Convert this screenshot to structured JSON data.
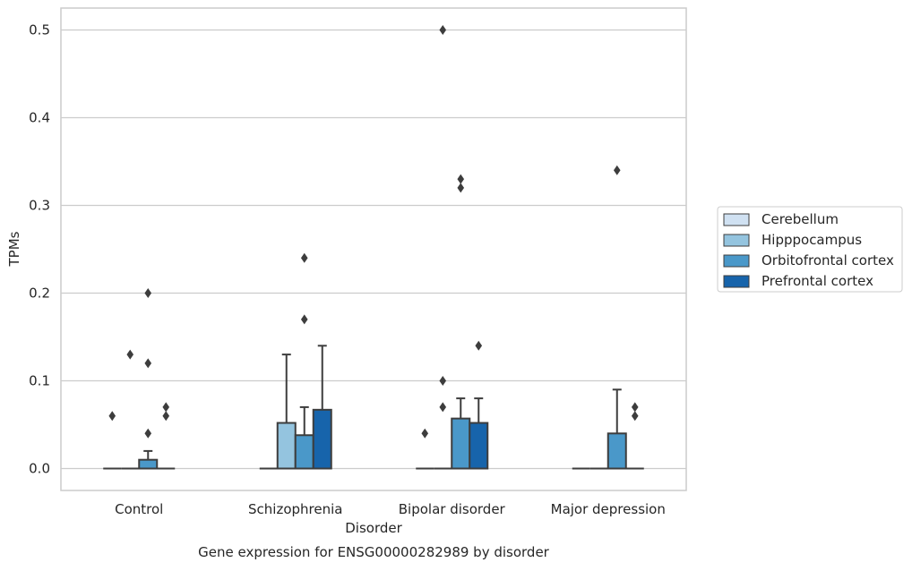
{
  "chart_data": {
    "type": "box",
    "title": "Gene expression for ENSG00000282989 by disorder",
    "xlabel": "Disorder",
    "ylabel": "TPMs",
    "ylim": [
      -0.025,
      0.525
    ],
    "yticks": [
      "0.0",
      "0.1",
      "0.2",
      "0.3",
      "0.4",
      "0.5"
    ],
    "grid": true,
    "legend_position": "right",
    "categories": [
      "Control",
      "Schizophrenia",
      "Bipolar disorder",
      "Major depression"
    ],
    "series": [
      {
        "name": "Cerebellum",
        "color": "#d0e1f2",
        "boxes": [
          {
            "q1": 0,
            "median": 0,
            "q3": 0,
            "whisker_low": 0,
            "whisker_high": 0,
            "outliers": [
              0.06
            ]
          },
          {
            "q1": 0,
            "median": 0,
            "q3": 0,
            "whisker_low": 0,
            "whisker_high": 0,
            "outliers": []
          },
          {
            "q1": 0,
            "median": 0,
            "q3": 0,
            "whisker_low": 0,
            "whisker_high": 0,
            "outliers": [
              0.04
            ]
          },
          {
            "q1": 0,
            "median": 0,
            "q3": 0,
            "whisker_low": 0,
            "whisker_high": 0,
            "outliers": []
          }
        ]
      },
      {
        "name": "Hipppocampus",
        "color": "#94c4df",
        "boxes": [
          {
            "q1": 0,
            "median": 0,
            "q3": 0,
            "whisker_low": 0,
            "whisker_high": 0,
            "outliers": [
              0.13
            ]
          },
          {
            "q1": 0,
            "median": 0,
            "q3": 0.052,
            "whisker_low": 0,
            "whisker_high": 0.13,
            "outliers": []
          },
          {
            "q1": 0,
            "median": 0,
            "q3": 0,
            "whisker_low": 0,
            "whisker_high": 0,
            "outliers": [
              0.07,
              0.1,
              0.5
            ]
          },
          {
            "q1": 0,
            "median": 0,
            "q3": 0,
            "whisker_low": 0,
            "whisker_high": 0,
            "outliers": []
          }
        ]
      },
      {
        "name": "Orbitofrontal cortex",
        "color": "#4a98c9",
        "boxes": [
          {
            "q1": 0,
            "median": 0,
            "q3": 0.01,
            "whisker_low": 0,
            "whisker_high": 0.02,
            "outliers": [
              0.04,
              0.12,
              0.2
            ]
          },
          {
            "q1": 0,
            "median": 0,
            "q3": 0.038,
            "whisker_low": 0,
            "whisker_high": 0.07,
            "outliers": [
              0.17,
              0.24
            ]
          },
          {
            "q1": 0,
            "median": 0,
            "q3": 0.057,
            "whisker_low": 0,
            "whisker_high": 0.08,
            "outliers": [
              0.32,
              0.33
            ]
          },
          {
            "q1": 0,
            "median": 0,
            "q3": 0.04,
            "whisker_low": 0,
            "whisker_high": 0.09,
            "outliers": [
              0.34
            ]
          }
        ]
      },
      {
        "name": "Prefrontal cortex",
        "color": "#1764ab",
        "boxes": [
          {
            "q1": 0,
            "median": 0,
            "q3": 0,
            "whisker_low": 0,
            "whisker_high": 0,
            "outliers": [
              0.06,
              0.07
            ]
          },
          {
            "q1": 0,
            "median": 0,
            "q3": 0.067,
            "whisker_low": 0,
            "whisker_high": 0.14,
            "outliers": []
          },
          {
            "q1": 0,
            "median": 0,
            "q3": 0.052,
            "whisker_low": 0,
            "whisker_high": 0.08,
            "outliers": [
              0.14
            ]
          },
          {
            "q1": 0,
            "median": 0,
            "q3": 0,
            "whisker_low": 0,
            "whisker_high": 0,
            "outliers": [
              0.06,
              0.07
            ]
          }
        ]
      }
    ]
  }
}
